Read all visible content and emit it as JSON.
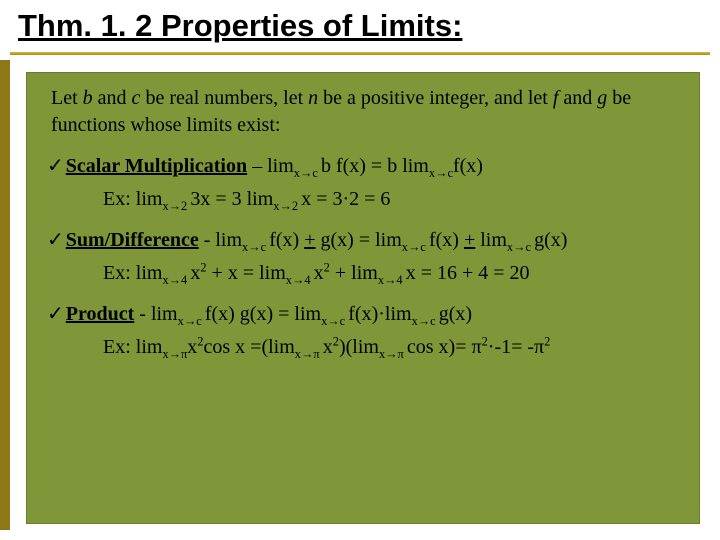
{
  "title": "Thm. 1. 2 Properties of Limits:",
  "intro_pre": "Let ",
  "intro_b": "b",
  "intro_mid1": " and ",
  "intro_c": "c",
  "intro_mid2": " be real numbers, let ",
  "intro_n": "n",
  "intro_mid3": " be a positive integer, and let ",
  "intro_f": "f",
  "intro_mid4": " and ",
  "intro_g": "g",
  "intro_tail": " be functions whose limits exist:",
  "scalar": {
    "name": "Scalar Multiplication",
    "dash": " – lim",
    "sub1": "x→c ",
    "mid1": "b f(x) = b lim",
    "sub2": "x→c",
    "mid2": "f(x)",
    "ex_pre": "Ex: lim",
    "ex_sub1": "x→2 ",
    "ex_mid1": "3x  = 3 lim",
    "ex_sub2": "x→2 ",
    "ex_mid2": "x = 3·2 = 6"
  },
  "sumdiff": {
    "name": "Sum/Difference",
    "dash": " - lim",
    "sub1": "x→c ",
    "mid1": "f(x) ",
    "pm1": "+",
    "mid2": " g(x) = lim",
    "sub2": "x→c ",
    "mid3": "f(x) ",
    "pm2": "+",
    "mid4": " lim",
    "sub3": "x→c ",
    "mid5": "g(x)",
    "ex_pre": "Ex: lim",
    "ex_sub1": "x→4 ",
    "ex_mid1": "x",
    "ex_sup1": "2",
    "ex_mid2": " + x  = lim",
    "ex_sub2": "x→4 ",
    "ex_mid3": "x",
    "ex_sup2": "2",
    "ex_mid4": " + lim",
    "ex_sub3": "x→4 ",
    "ex_mid5": "x = 16 + 4 = 20"
  },
  "product": {
    "name": "Product",
    "dash": " - lim",
    "sub1": "x→c ",
    "mid1": "f(x) g(x) = lim",
    "sub2": "x→c ",
    "mid2": "f(x)·lim",
    "sub3": "x→c ",
    "mid3": "g(x)",
    "ex_pre": "Ex: lim",
    "ex_sub1": "x→π",
    "ex_mid1": "x",
    "ex_sup1": "2",
    "ex_mid2": "cos x =(lim",
    "ex_sub2": "x→π ",
    "ex_mid3": "x",
    "ex_sup2": "2",
    "ex_mid4": ")(lim",
    "ex_sub3": "x→π ",
    "ex_mid5": "cos x)= π",
    "ex_sup3": "2",
    "ex_mid6": "·-1= -π",
    "ex_sup4": "2"
  },
  "colors": {
    "content_bg": "#7f9639",
    "side_bar": "#8c7817",
    "rule_top": "#d4b93a",
    "rule_bot": "#a88d1a"
  }
}
